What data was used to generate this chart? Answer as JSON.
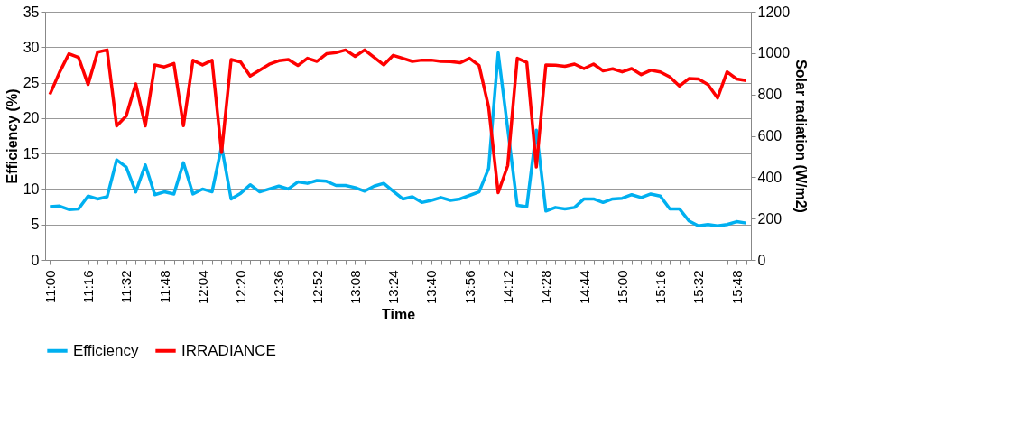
{
  "chart_data": {
    "type": "line",
    "xlabel": "Time",
    "ylabel": "Efficiency (%)",
    "y2label": "Solar radiation (W/m2)",
    "categories": [
      "11:00",
      null,
      null,
      null,
      "11:16",
      null,
      null,
      null,
      "11:32",
      null,
      null,
      null,
      "11:48",
      null,
      null,
      null,
      "12:04",
      null,
      null,
      null,
      "12:20",
      null,
      null,
      null,
      "12:36",
      null,
      null,
      null,
      "12:52",
      null,
      null,
      null,
      "13:08",
      null,
      null,
      null,
      "13:24",
      null,
      null,
      null,
      "13:40",
      null,
      null,
      null,
      "13:56",
      null,
      null,
      null,
      "14:12",
      null,
      null,
      null,
      "14:28",
      null,
      null,
      null,
      "14:44",
      null,
      null,
      null,
      "15:00",
      null,
      null,
      null,
      "15:16",
      null,
      null,
      null,
      "15:32",
      null,
      null,
      null,
      "15:48",
      null
    ],
    "series": [
      {
        "name": "Efficiency",
        "color": "#00b0f0",
        "values": [
          7.5,
          7.6,
          7.1,
          7.2,
          9.0,
          8.6,
          8.9,
          14.1,
          13.1,
          9.6,
          13.4,
          9.2,
          9.6,
          9.3,
          13.7,
          9.3,
          10.0,
          9.6,
          16.0,
          8.6,
          9.4,
          10.6,
          9.6,
          10.0,
          10.4,
          10.0,
          11.0,
          10.8,
          11.2,
          11.1,
          10.5,
          10.5,
          10.2,
          9.7,
          10.4,
          10.8,
          9.7,
          8.6,
          8.9,
          8.1,
          8.4,
          8.8,
          8.4,
          8.6,
          9.1,
          9.6,
          12.9,
          29.2,
          18.5,
          7.7,
          7.5,
          18.3,
          6.9,
          7.4,
          7.2,
          7.4,
          8.6,
          8.6,
          8.1,
          8.6,
          8.7,
          9.2,
          8.8,
          9.3,
          9.0,
          7.2,
          7.2,
          5.5,
          4.8,
          5.0,
          4.8,
          5.0,
          5.4,
          5.2
        ]
      },
      {
        "name": "IRRADIANCE",
        "color": "#ff0000",
        "axis": "y2",
        "values": [
          800,
          906,
          997,
          979,
          848,
          1005,
          1015,
          648,
          696,
          851,
          648,
          943,
          933,
          950,
          649,
          965,
          943,
          965,
          519,
          969,
          957,
          889,
          917,
          946,
          963,
          969,
          940,
          975,
          960,
          997,
          1002,
          1015,
          984,
          1015,
          979,
          943,
          989,
          975,
          960,
          966,
          966,
          960,
          959,
          953,
          975,
          940,
          739,
          325,
          456,
          975,
          955,
          449,
          943,
          941,
          936,
          947,
          925,
          947,
          914,
          924,
          909,
          925,
          896,
          917,
          909,
          885,
          841,
          877,
          875,
          848,
          783,
          909,
          875,
          867
        ]
      }
    ],
    "ylim": [
      0,
      35
    ],
    "yticks": [
      0,
      5,
      10,
      15,
      20,
      25,
      30,
      35
    ],
    "y2lim": [
      0,
      1200
    ],
    "y2ticks": [
      0,
      200,
      400,
      600,
      800,
      1000,
      1200
    ],
    "grid": "y",
    "legend": "bottom",
    "line_style": "solid",
    "marker": "none"
  }
}
